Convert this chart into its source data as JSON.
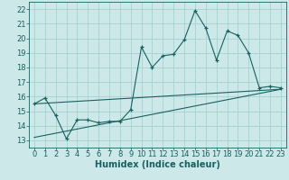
{
  "xlabel": "Humidex (Indice chaleur)",
  "bg_color": "#cce8e8",
  "line_color": "#1a6060",
  "grid_color": "#9fcfcf",
  "xlim": [
    -0.5,
    23.5
  ],
  "ylim": [
    12.5,
    22.5
  ],
  "xticks": [
    0,
    1,
    2,
    3,
    4,
    5,
    6,
    7,
    8,
    9,
    10,
    11,
    12,
    13,
    14,
    15,
    16,
    17,
    18,
    19,
    20,
    21,
    22,
    23
  ],
  "yticks": [
    13,
    14,
    15,
    16,
    17,
    18,
    19,
    20,
    21,
    22
  ],
  "series1_x": [
    0,
    1,
    2,
    3,
    4,
    5,
    6,
    7,
    8,
    9,
    10,
    11,
    12,
    13,
    14,
    15,
    16,
    17,
    18,
    19,
    20,
    21,
    22,
    23
  ],
  "series1_y": [
    15.5,
    15.9,
    14.7,
    13.1,
    14.4,
    14.4,
    14.2,
    14.3,
    14.3,
    15.1,
    19.4,
    18.0,
    18.8,
    18.9,
    19.9,
    21.9,
    20.7,
    18.5,
    20.5,
    20.2,
    19.0,
    16.6,
    16.7,
    16.6
  ],
  "series2_x": [
    0,
    23
  ],
  "series2_y": [
    15.5,
    16.5
  ],
  "series3_x": [
    0,
    23
  ],
  "series3_y": [
    13.2,
    16.5
  ],
  "tick_fontsize": 6.0,
  "xlabel_fontsize": 7.0
}
